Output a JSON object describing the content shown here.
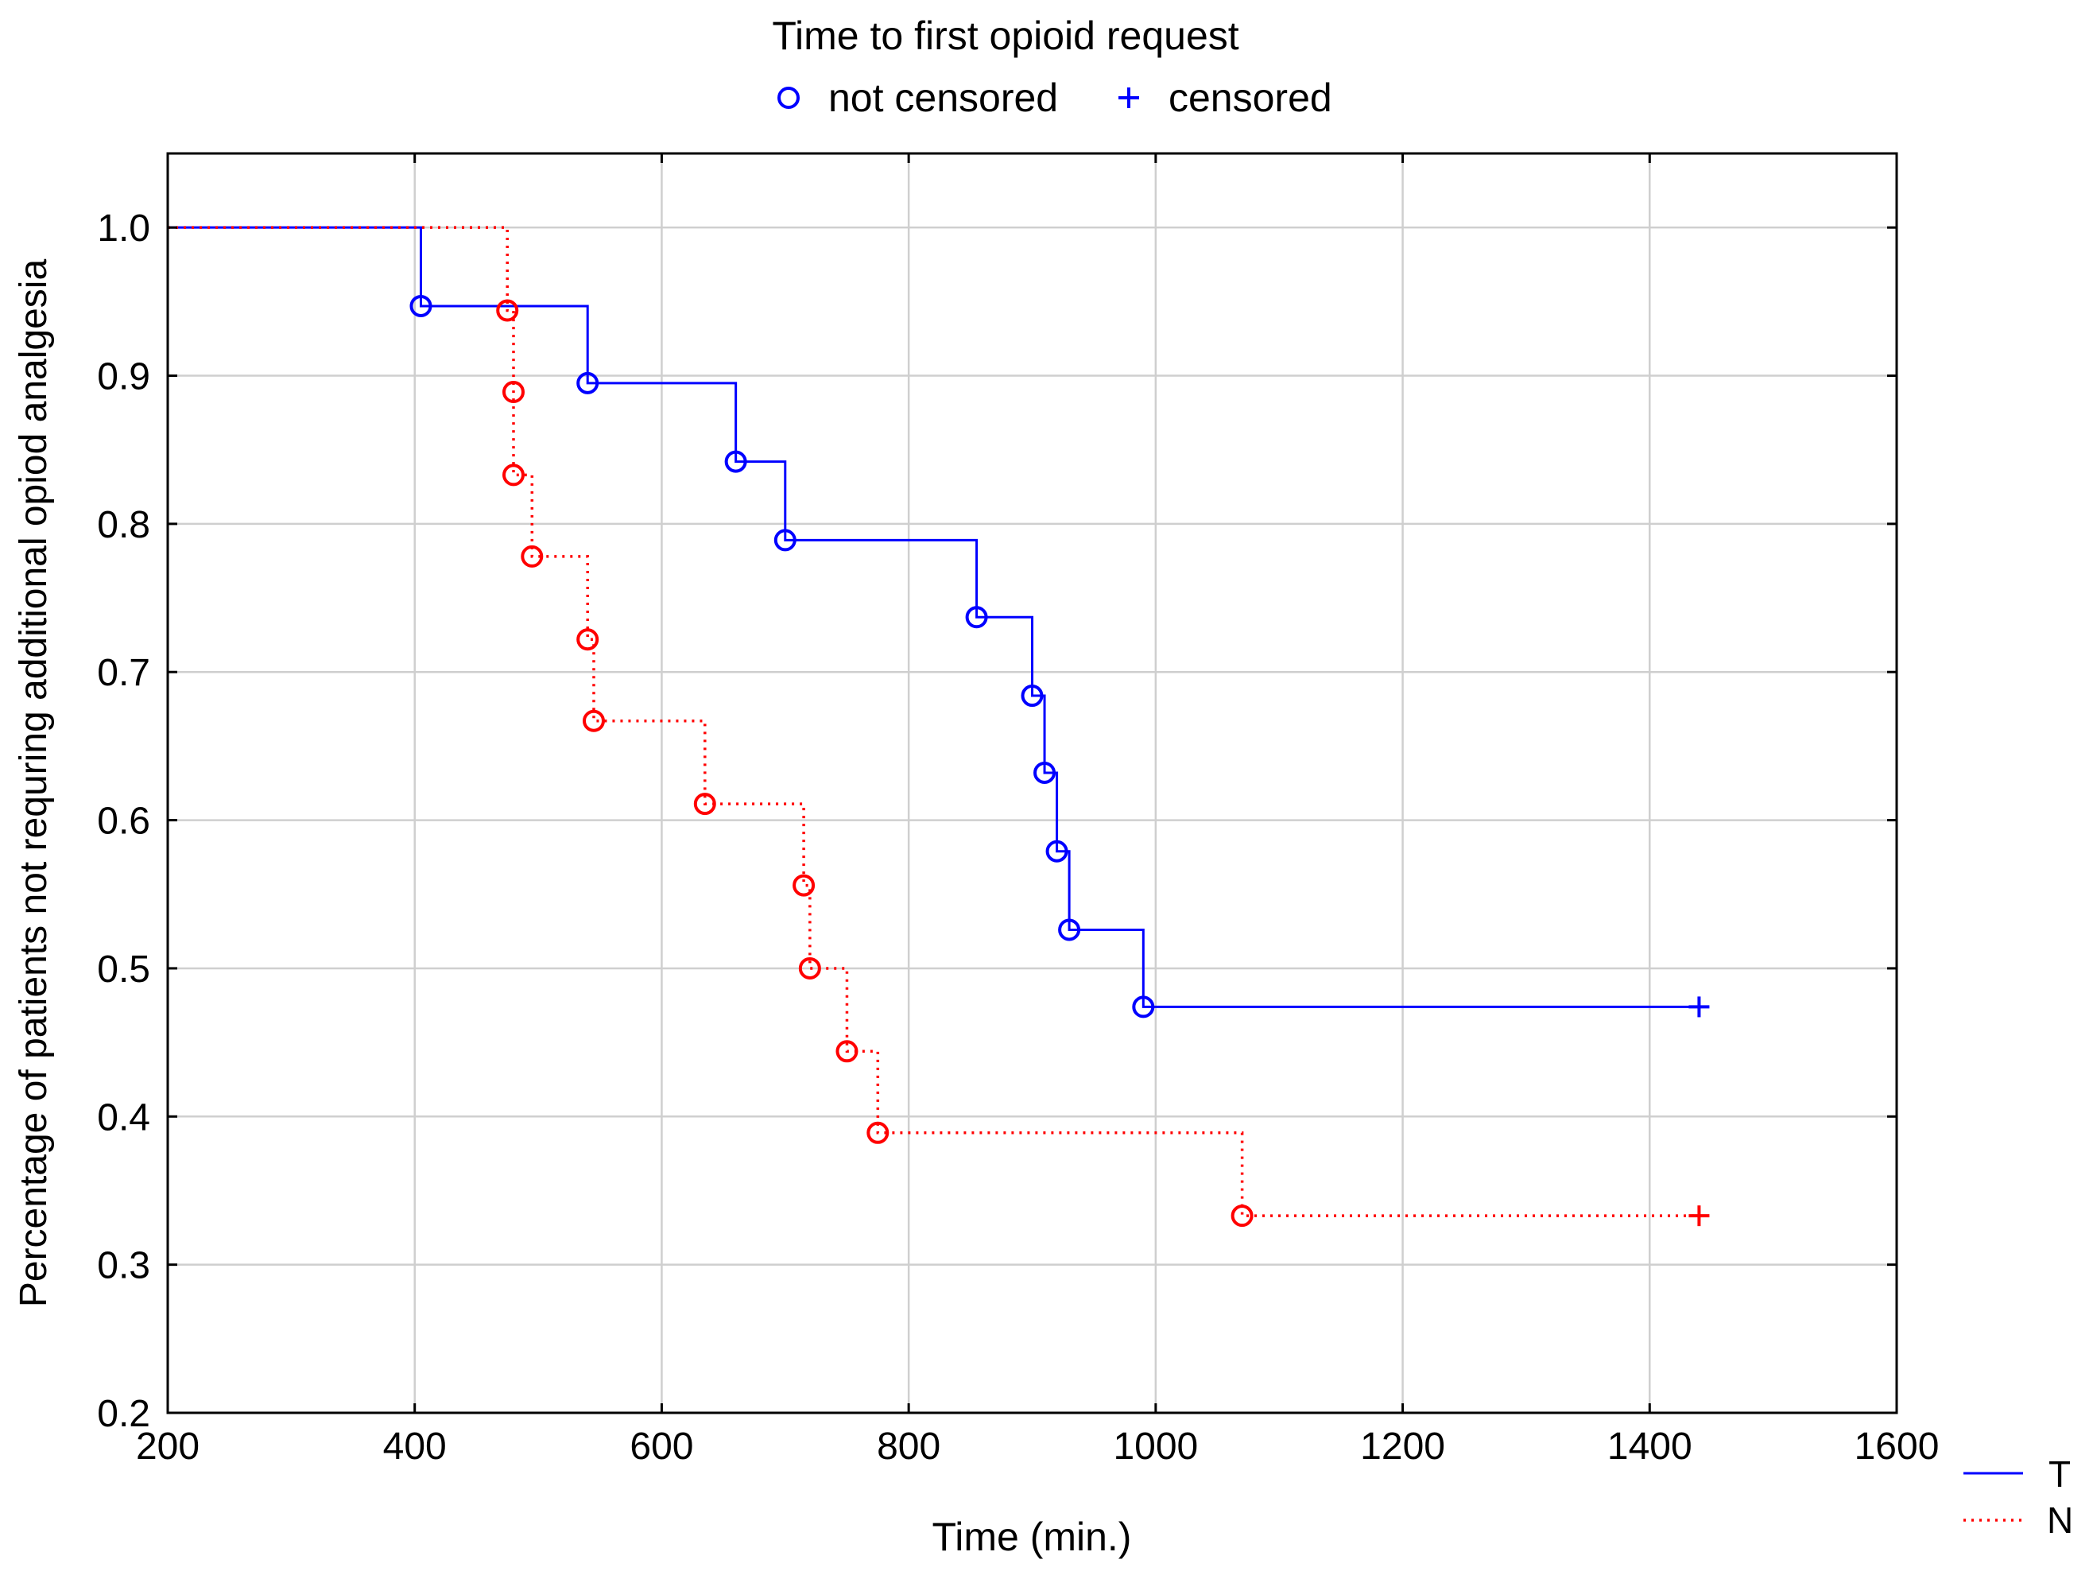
{
  "chart_data": {
    "type": "line",
    "subtype": "kaplan-meier-step",
    "title": "Time to first opioid request",
    "xlabel": "Time (min.)",
    "ylabel": "Percentage of patients not requring additional opiod analgesia",
    "xlim": [
      200,
      1600
    ],
    "ylim": [
      0.2,
      1.05
    ],
    "xticks": [
      200,
      400,
      600,
      800,
      1000,
      1200,
      1400,
      1600
    ],
    "yticks": [
      0.2,
      0.3,
      0.4,
      0.5,
      0.6,
      0.7,
      0.8,
      0.9,
      1.0
    ],
    "xtick_labels": [
      "200",
      "400",
      "600",
      "800",
      "1000",
      "1200",
      "1400",
      "1600"
    ],
    "ytick_labels": [
      "0.2",
      "0.3",
      "0.4",
      "0.5",
      "0.6",
      "0.7",
      "0.8",
      "0.9",
      "1.0"
    ],
    "grid": true,
    "marker_legend": [
      {
        "symbol": "circle",
        "label": "not censored"
      },
      {
        "symbol": "plus",
        "label": "censored"
      }
    ],
    "series": [
      {
        "name": "T",
        "color": "#0000ff",
        "linestyle": "solid",
        "start": [
          200,
          1.0
        ],
        "events": [
          [
            405,
            0.947
          ],
          [
            540,
            0.895
          ],
          [
            660,
            0.842
          ],
          [
            700,
            0.789
          ],
          [
            855,
            0.737
          ],
          [
            900,
            0.684
          ],
          [
            910,
            0.632
          ],
          [
            920,
            0.579
          ],
          [
            930,
            0.526
          ],
          [
            990,
            0.474
          ]
        ],
        "censored": [
          [
            1440,
            0.474
          ]
        ]
      },
      {
        "name": "N",
        "color": "#ff0000",
        "linestyle": "dotted",
        "start": [
          200,
          1.0
        ],
        "events": [
          [
            475,
            0.944
          ],
          [
            480,
            0.889
          ],
          [
            480,
            0.833
          ],
          [
            495,
            0.778
          ],
          [
            540,
            0.722
          ],
          [
            545,
            0.667
          ],
          [
            635,
            0.611
          ],
          [
            715,
            0.556
          ],
          [
            720,
            0.5
          ],
          [
            750,
            0.444
          ],
          [
            775,
            0.389
          ],
          [
            1070,
            0.333
          ]
        ],
        "censored": [
          [
            1440,
            0.333
          ]
        ]
      }
    ]
  }
}
